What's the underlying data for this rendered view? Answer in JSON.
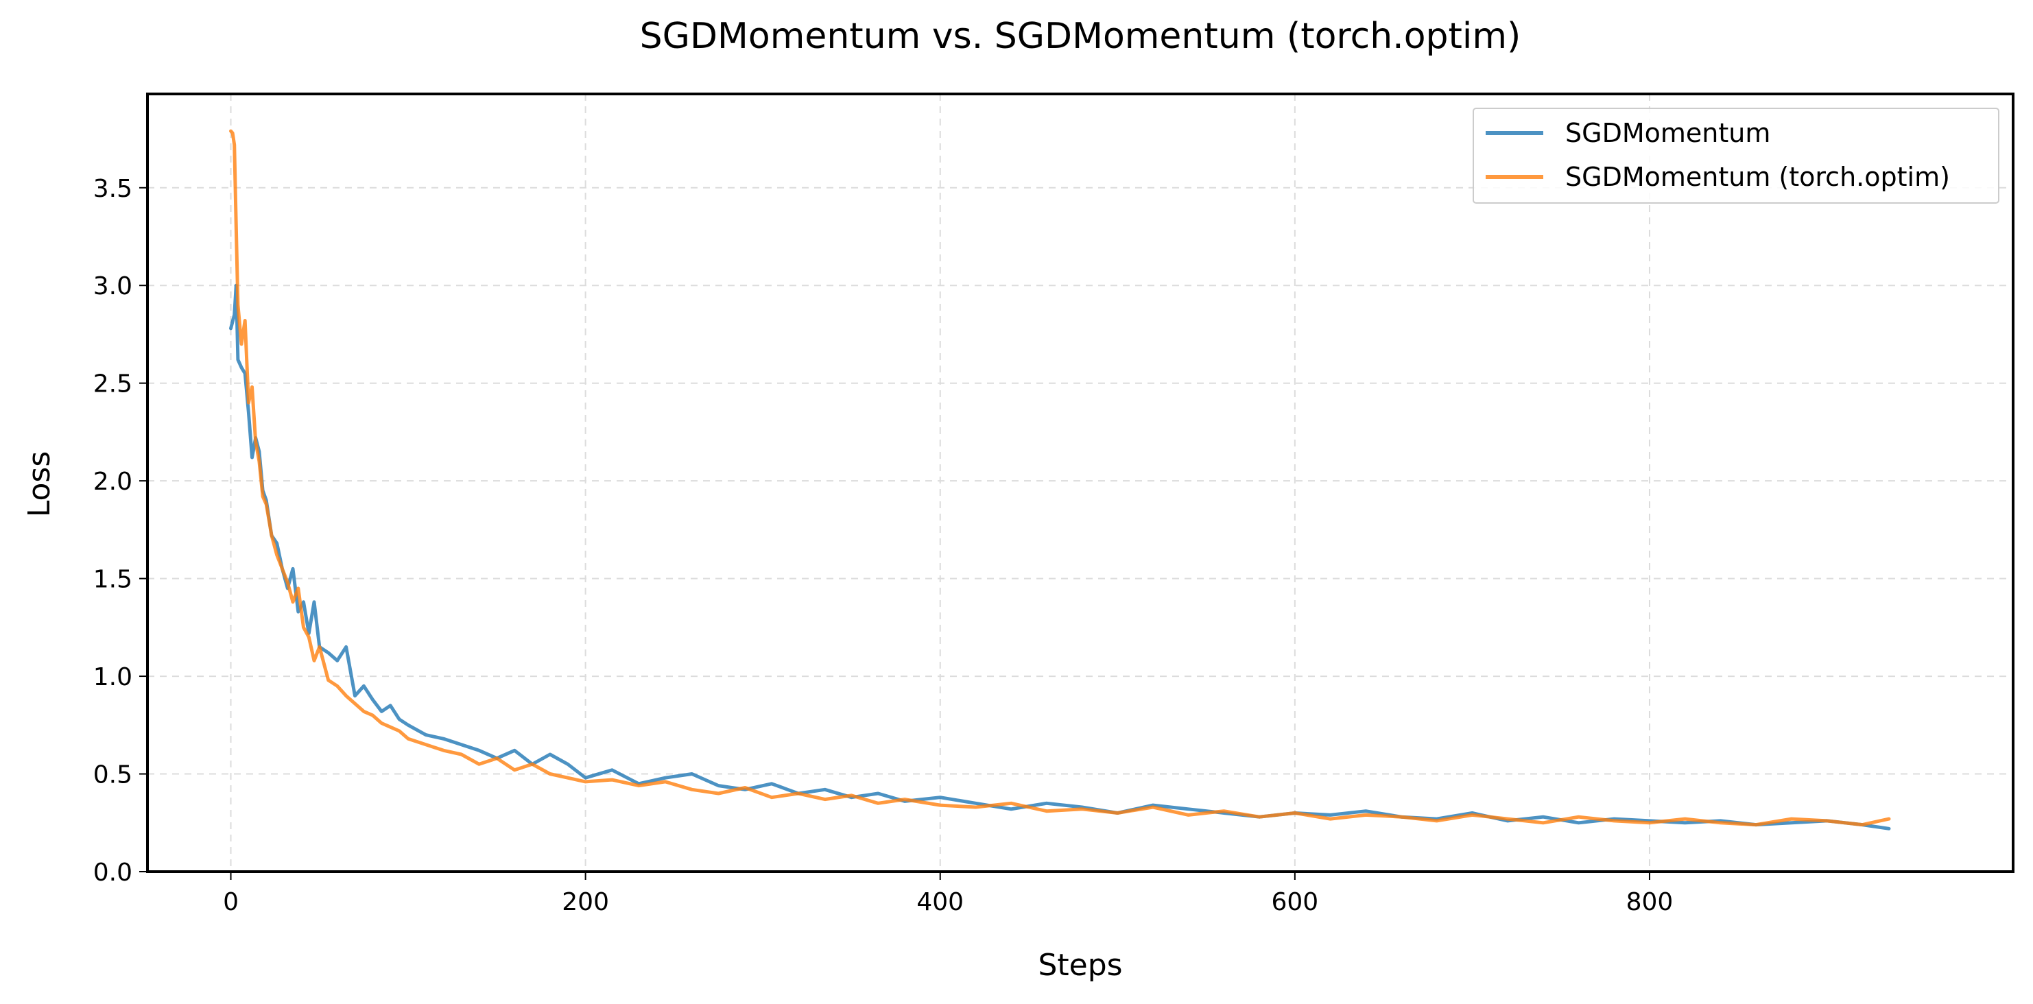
{
  "chart_data": {
    "type": "line",
    "title": "SGDMomentum vs. SGDMomentum (torch.optim)",
    "xlabel": "Steps",
    "ylabel": "Loss",
    "xlim": [
      -47,
      1005
    ],
    "ylim": [
      0.0,
      3.98
    ],
    "xticks": [
      0,
      200,
      400,
      600,
      800
    ],
    "yticks": [
      0.0,
      0.5,
      1.0,
      1.5,
      2.0,
      2.5,
      3.0,
      3.5
    ],
    "xtick_labels": [
      "0",
      "200",
      "400",
      "600",
      "800"
    ],
    "ytick_labels": [
      "0.0",
      "0.5",
      "1.0",
      "1.5",
      "2.0",
      "2.5",
      "3.0",
      "3.5"
    ],
    "grid": true,
    "legend_position": "top-right",
    "series": [
      {
        "name": "SGDMomentum",
        "color": "#1f77b4",
        "opacity": 0.8,
        "x": [
          0,
          2,
          3,
          4,
          6,
          8,
          10,
          12,
          14,
          16,
          18,
          20,
          23,
          26,
          29,
          32,
          35,
          38,
          41,
          44,
          47,
          50,
          55,
          60,
          65,
          70,
          75,
          80,
          85,
          90,
          95,
          100,
          110,
          120,
          130,
          140,
          150,
          160,
          170,
          180,
          190,
          200,
          215,
          230,
          245,
          260,
          275,
          290,
          305,
          320,
          335,
          350,
          365,
          380,
          400,
          420,
          440,
          460,
          480,
          500,
          520,
          540,
          560,
          580,
          600,
          620,
          640,
          660,
          680,
          700,
          720,
          740,
          760,
          780,
          800,
          820,
          840,
          860,
          880,
          900,
          920,
          935
        ],
        "y": [
          2.78,
          2.85,
          3.0,
          2.62,
          2.58,
          2.55,
          2.35,
          2.12,
          2.22,
          2.15,
          1.95,
          1.9,
          1.72,
          1.68,
          1.55,
          1.45,
          1.55,
          1.33,
          1.38,
          1.22,
          1.38,
          1.15,
          1.12,
          1.08,
          1.15,
          0.9,
          0.95,
          0.88,
          0.82,
          0.85,
          0.78,
          0.75,
          0.7,
          0.68,
          0.65,
          0.62,
          0.58,
          0.62,
          0.55,
          0.6,
          0.55,
          0.48,
          0.52,
          0.45,
          0.48,
          0.5,
          0.44,
          0.42,
          0.45,
          0.4,
          0.42,
          0.38,
          0.4,
          0.36,
          0.38,
          0.35,
          0.32,
          0.35,
          0.33,
          0.3,
          0.34,
          0.32,
          0.3,
          0.28,
          0.3,
          0.29,
          0.31,
          0.28,
          0.27,
          0.3,
          0.26,
          0.28,
          0.25,
          0.27,
          0.26,
          0.25,
          0.26,
          0.24,
          0.25,
          0.26,
          0.24,
          0.22
        ]
      },
      {
        "name": "SGDMomentum (torch.optim)",
        "color": "#ff7f0e",
        "opacity": 0.8,
        "x": [
          0,
          1,
          2,
          3,
          4,
          6,
          8,
          10,
          12,
          14,
          16,
          18,
          20,
          23,
          26,
          29,
          32,
          35,
          38,
          41,
          44,
          47,
          50,
          55,
          60,
          65,
          70,
          75,
          80,
          85,
          90,
          95,
          100,
          110,
          120,
          130,
          140,
          150,
          160,
          170,
          180,
          190,
          200,
          215,
          230,
          245,
          260,
          275,
          290,
          305,
          320,
          335,
          350,
          365,
          380,
          400,
          420,
          440,
          460,
          480,
          500,
          520,
          540,
          560,
          580,
          600,
          620,
          640,
          660,
          680,
          700,
          720,
          740,
          760,
          780,
          800,
          820,
          840,
          860,
          880,
          900,
          920,
          935
        ],
        "y": [
          3.79,
          3.78,
          3.72,
          3.3,
          2.9,
          2.7,
          2.82,
          2.4,
          2.48,
          2.2,
          2.1,
          1.92,
          1.88,
          1.72,
          1.62,
          1.55,
          1.48,
          1.38,
          1.45,
          1.25,
          1.2,
          1.08,
          1.15,
          0.98,
          0.95,
          0.9,
          0.86,
          0.82,
          0.8,
          0.76,
          0.74,
          0.72,
          0.68,
          0.65,
          0.62,
          0.6,
          0.55,
          0.58,
          0.52,
          0.55,
          0.5,
          0.48,
          0.46,
          0.47,
          0.44,
          0.46,
          0.42,
          0.4,
          0.43,
          0.38,
          0.4,
          0.37,
          0.39,
          0.35,
          0.37,
          0.34,
          0.33,
          0.35,
          0.31,
          0.32,
          0.3,
          0.33,
          0.29,
          0.31,
          0.28,
          0.3,
          0.27,
          0.29,
          0.28,
          0.26,
          0.29,
          0.27,
          0.25,
          0.28,
          0.26,
          0.25,
          0.27,
          0.25,
          0.24,
          0.27,
          0.26,
          0.24,
          0.27
        ]
      }
    ]
  }
}
